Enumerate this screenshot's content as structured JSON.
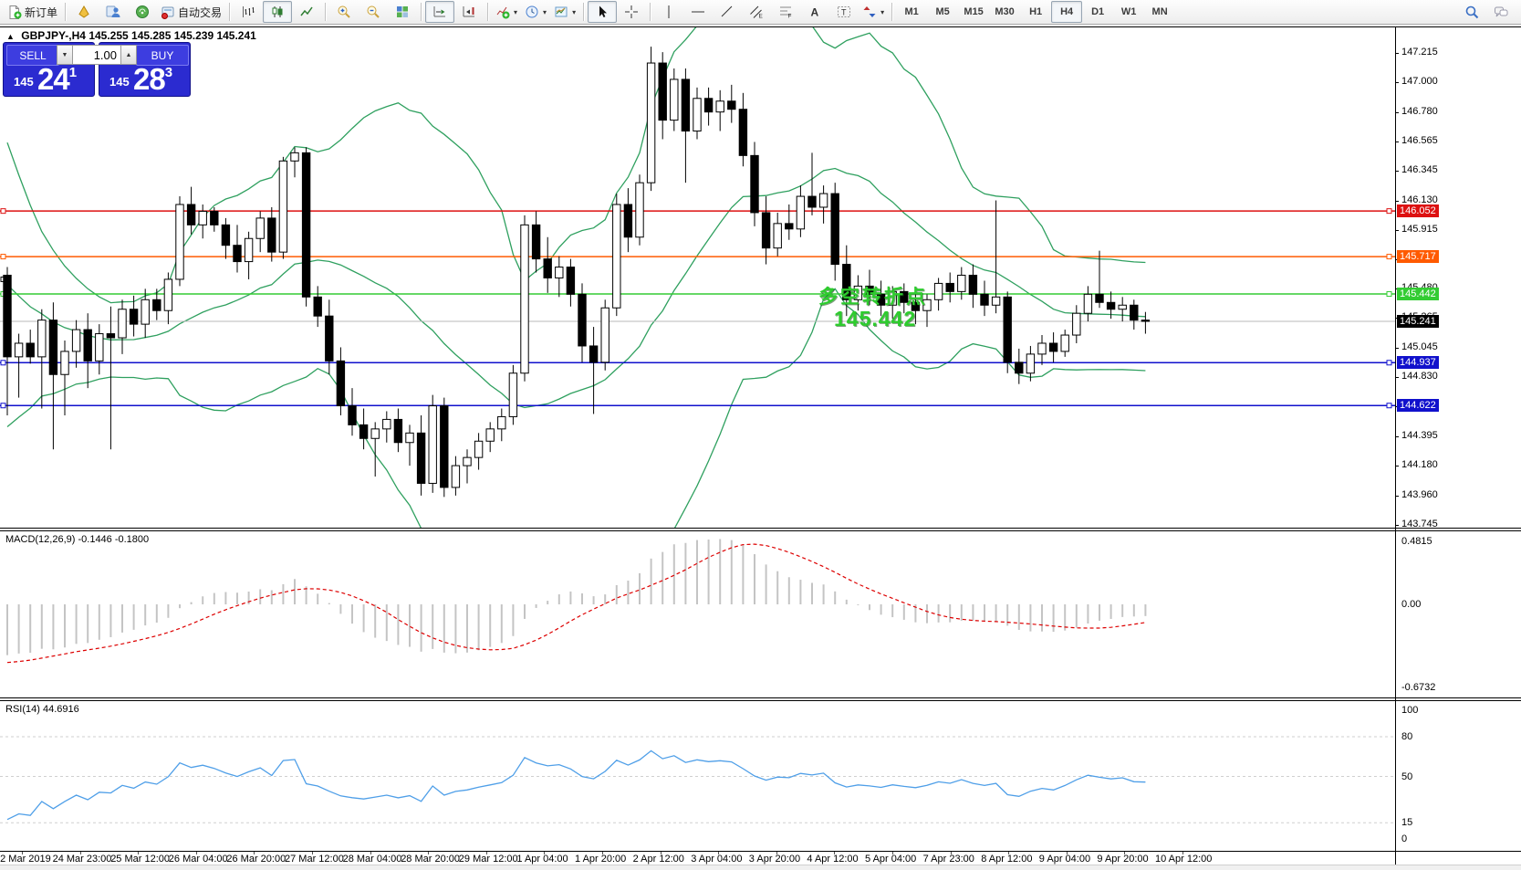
{
  "toolbar": {
    "items": [
      {
        "name": "new-order-button",
        "icon": "doc-plus",
        "label": "新订单"
      },
      {
        "sep": true
      },
      {
        "name": "metaeditor-button",
        "icon": "yellow-wedge"
      },
      {
        "name": "market-watch-button",
        "icon": "person"
      },
      {
        "name": "navigator-button",
        "icon": "orb"
      },
      {
        "name": "autotrading-button",
        "icon": "autotrade",
        "label": "自动交易"
      },
      {
        "sep": true
      },
      {
        "name": "bar-chart-button",
        "icon": "bars"
      },
      {
        "name": "candlestick-chart-button",
        "icon": "candles",
        "pressed": true
      },
      {
        "name": "line-chart-button",
        "icon": "linechart"
      },
      {
        "sep": true
      },
      {
        "name": "zoom-in-button",
        "icon": "zoom-in"
      },
      {
        "name": "zoom-out-button",
        "icon": "zoom-out"
      },
      {
        "name": "tile-windows-button",
        "icon": "tiles"
      },
      {
        "sep": true
      },
      {
        "name": "auto-scroll-button",
        "icon": "autoscroll",
        "pressed": true
      },
      {
        "name": "chart-shift-button",
        "icon": "shift"
      },
      {
        "sep": true
      },
      {
        "name": "indicators-button",
        "icon": "indicators",
        "dd": true
      },
      {
        "name": "periods-button",
        "icon": "clock",
        "dd": true
      },
      {
        "name": "templates-button",
        "icon": "template",
        "dd": true
      },
      {
        "sep": true
      },
      {
        "name": "cursor-button",
        "icon": "cursor",
        "pressed": true
      },
      {
        "name": "crosshair-button",
        "icon": "crosshair"
      },
      {
        "sep": true
      },
      {
        "name": "vertical-line-button",
        "icon": "vline"
      },
      {
        "name": "horizontal-line-button",
        "icon": "hline"
      },
      {
        "name": "trendline-button",
        "icon": "trendline"
      },
      {
        "name": "equidistant-channel-button",
        "icon": "channel"
      },
      {
        "name": "fibonacci-button",
        "icon": "fibo"
      },
      {
        "name": "text-button",
        "icon": "text-a"
      },
      {
        "name": "text-label-button",
        "icon": "text-label"
      },
      {
        "name": "arrows-button",
        "icon": "arrows",
        "dd": true
      },
      {
        "sep": true
      }
    ],
    "timeframes": [
      {
        "label": "M1"
      },
      {
        "label": "M5"
      },
      {
        "label": "M15"
      },
      {
        "label": "M30"
      },
      {
        "label": "H1"
      },
      {
        "label": "H4",
        "pressed": true
      },
      {
        "label": "D1"
      },
      {
        "label": "W1"
      },
      {
        "label": "MN"
      }
    ],
    "right_icons": [
      {
        "name": "search-button",
        "icon": "search"
      },
      {
        "name": "chat-button",
        "icon": "chat"
      }
    ]
  },
  "header": {
    "collapse_glyph": "▲",
    "symbol": "GBPJPY-,H4",
    "ohlc": "145.255 145.285 145.239 145.241"
  },
  "trade_panel": {
    "sell_label": "SELL",
    "buy_label": "BUY",
    "volume": "1.00",
    "spin_down": "▼",
    "spin_up": "▲",
    "sell_small": "145",
    "sell_big": "24",
    "sell_sup": "1",
    "buy_small": "145",
    "buy_big": "28",
    "buy_sup": "3"
  },
  "annotation": {
    "line1": "多空转折点",
    "line2": "145.442",
    "color": "#2ecc2e"
  },
  "macd_panel": {
    "name": "MACD(12,26,9)",
    "values": "-0.1446 -0.1800"
  },
  "rsi_panel": {
    "name": "RSI(14)",
    "value": "44.6916"
  },
  "chart_data": {
    "type": "candlestick",
    "symbol": "GBPJPY-",
    "timeframe": "H4",
    "price_axis_ticks": [
      147.215,
      147.0,
      146.78,
      146.565,
      146.345,
      146.13,
      145.915,
      145.7,
      145.48,
      145.265,
      145.045,
      144.83,
      144.615,
      144.395,
      144.18,
      143.96,
      143.745
    ],
    "levels": [
      {
        "price": 146.052,
        "label": "146.052",
        "color": "#dd1111"
      },
      {
        "price": 145.717,
        "label": "145.717",
        "color": "#ff5a00"
      },
      {
        "price": 145.442,
        "label": "145.442",
        "color": "#33cc33"
      },
      {
        "price": 144.937,
        "label": "144.937",
        "color": "#1111cc"
      },
      {
        "price": 144.622,
        "label": "144.622",
        "color": "#1111cc"
      }
    ],
    "current_price": {
      "price": 145.241,
      "label": "145.241",
      "line_color": "#b9b9b9",
      "badge_color": "#000000"
    },
    "extra_anchor_price": 145.55,
    "prehistory_closes": [
      146.9,
      146.75,
      146.55,
      146.3,
      146.05,
      145.85,
      145.7,
      145.6,
      145.5,
      145.4,
      145.3,
      145.2,
      145.1,
      145.0,
      144.95,
      145.0,
      145.1,
      145.2,
      145.3,
      145.38
    ],
    "candles": [
      [
        145.58,
        145.64,
        144.55,
        144.98
      ],
      [
        144.98,
        145.15,
        144.68,
        145.08
      ],
      [
        145.08,
        145.18,
        144.93,
        144.98
      ],
      [
        144.98,
        145.33,
        144.6,
        145.25
      ],
      [
        145.25,
        145.38,
        144.3,
        144.85
      ],
      [
        144.85,
        145.1,
        144.55,
        145.02
      ],
      [
        145.02,
        145.25,
        144.9,
        145.18
      ],
      [
        145.18,
        145.3,
        144.75,
        144.95
      ],
      [
        144.95,
        145.22,
        144.85,
        145.15
      ],
      [
        145.15,
        145.35,
        144.3,
        145.12
      ],
      [
        145.12,
        145.4,
        145.0,
        145.33
      ],
      [
        145.33,
        145.43,
        145.13,
        145.22
      ],
      [
        145.22,
        145.48,
        145.12,
        145.4
      ],
      [
        145.4,
        145.48,
        145.25,
        145.32
      ],
      [
        145.32,
        145.6,
        145.22,
        145.55
      ],
      [
        145.55,
        146.16,
        145.5,
        146.1
      ],
      [
        146.1,
        146.23,
        145.88,
        145.95
      ],
      [
        145.95,
        146.1,
        145.85,
        146.05
      ],
      [
        146.05,
        146.08,
        145.9,
        145.95
      ],
      [
        145.95,
        146.0,
        145.7,
        145.8
      ],
      [
        145.8,
        145.95,
        145.6,
        145.68
      ],
      [
        145.68,
        145.9,
        145.55,
        145.85
      ],
      [
        145.85,
        146.05,
        145.75,
        146.0
      ],
      [
        146.0,
        146.08,
        145.68,
        145.75
      ],
      [
        145.75,
        146.45,
        145.7,
        146.42
      ],
      [
        146.42,
        146.52,
        146.3,
        146.48
      ],
      [
        146.48,
        146.52,
        145.35,
        145.42
      ],
      [
        145.42,
        145.5,
        145.2,
        145.28
      ],
      [
        145.28,
        145.4,
        144.85,
        144.95
      ],
      [
        144.95,
        145.05,
        144.55,
        144.62
      ],
      [
        144.62,
        144.75,
        144.4,
        144.48
      ],
      [
        144.48,
        144.6,
        144.3,
        144.38
      ],
      [
        144.38,
        144.5,
        144.1,
        144.45
      ],
      [
        144.45,
        144.58,
        144.35,
        144.52
      ],
      [
        144.52,
        144.6,
        144.28,
        144.35
      ],
      [
        144.35,
        144.48,
        144.18,
        144.42
      ],
      [
        144.42,
        144.55,
        143.96,
        144.05
      ],
      [
        144.05,
        144.7,
        143.98,
        144.62
      ],
      [
        144.62,
        144.68,
        143.95,
        144.02
      ],
      [
        144.02,
        144.25,
        143.96,
        144.18
      ],
      [
        144.18,
        144.3,
        144.05,
        144.24
      ],
      [
        144.24,
        144.42,
        144.15,
        144.36
      ],
      [
        144.36,
        144.5,
        144.28,
        144.45
      ],
      [
        144.45,
        144.6,
        144.36,
        144.54
      ],
      [
        144.54,
        144.92,
        144.48,
        144.86
      ],
      [
        144.86,
        146.02,
        144.8,
        145.95
      ],
      [
        145.95,
        146.05,
        145.6,
        145.7
      ],
      [
        145.7,
        145.86,
        145.45,
        145.56
      ],
      [
        145.56,
        145.72,
        145.42,
        145.64
      ],
      [
        145.64,
        145.7,
        145.35,
        145.44
      ],
      [
        145.44,
        145.52,
        144.94,
        145.06
      ],
      [
        145.06,
        145.2,
        144.56,
        144.94
      ],
      [
        144.94,
        145.4,
        144.88,
        145.34
      ],
      [
        145.34,
        146.18,
        145.28,
        146.1
      ],
      [
        146.1,
        146.22,
        145.75,
        145.86
      ],
      [
        145.86,
        146.32,
        145.8,
        146.26
      ],
      [
        146.26,
        147.26,
        146.2,
        147.14
      ],
      [
        147.14,
        147.22,
        146.58,
        146.72
      ],
      [
        146.72,
        147.1,
        146.64,
        147.02
      ],
      [
        147.02,
        147.1,
        146.26,
        146.64
      ],
      [
        146.64,
        146.96,
        146.58,
        146.88
      ],
      [
        146.88,
        146.96,
        146.68,
        146.78
      ],
      [
        146.78,
        146.94,
        146.64,
        146.86
      ],
      [
        146.86,
        146.98,
        146.7,
        146.8
      ],
      [
        146.8,
        146.92,
        146.38,
        146.46
      ],
      [
        146.46,
        146.56,
        145.94,
        146.04
      ],
      [
        146.04,
        146.16,
        145.66,
        145.78
      ],
      [
        145.78,
        146.04,
        145.72,
        145.96
      ],
      [
        145.96,
        146.1,
        145.84,
        145.92
      ],
      [
        145.92,
        146.24,
        145.86,
        146.16
      ],
      [
        146.16,
        146.48,
        146.02,
        146.08
      ],
      [
        146.08,
        146.24,
        145.96,
        146.18
      ],
      [
        146.18,
        146.26,
        145.54,
        145.66
      ],
      [
        145.66,
        145.8,
        145.28,
        145.4
      ],
      [
        145.4,
        145.58,
        145.32,
        145.5
      ],
      [
        145.5,
        145.62,
        145.36,
        145.44
      ],
      [
        145.44,
        145.54,
        145.28,
        145.36
      ],
      [
        145.36,
        145.5,
        145.26,
        145.46
      ],
      [
        145.46,
        145.52,
        145.3,
        145.38
      ],
      [
        145.38,
        145.48,
        145.22,
        145.32
      ],
      [
        145.32,
        145.44,
        145.2,
        145.4
      ],
      [
        145.4,
        145.56,
        145.32,
        145.52
      ],
      [
        145.52,
        145.6,
        145.38,
        145.46
      ],
      [
        145.46,
        145.64,
        145.4,
        145.58
      ],
      [
        145.58,
        145.66,
        145.34,
        145.44
      ],
      [
        145.44,
        145.54,
        145.28,
        145.36
      ],
      [
        145.36,
        146.13,
        145.3,
        145.42
      ],
      [
        145.42,
        145.46,
        144.86,
        144.94
      ],
      [
        144.94,
        145.04,
        144.78,
        144.86
      ],
      [
        144.86,
        145.06,
        144.8,
        145.0
      ],
      [
        145.0,
        145.14,
        144.92,
        145.08
      ],
      [
        145.08,
        145.16,
        144.94,
        145.02
      ],
      [
        145.02,
        145.18,
        144.98,
        145.14
      ],
      [
        145.14,
        145.36,
        145.08,
        145.3
      ],
      [
        145.3,
        145.5,
        145.24,
        145.44
      ],
      [
        145.44,
        145.76,
        145.34,
        145.38
      ],
      [
        145.38,
        145.46,
        145.26,
        145.33
      ],
      [
        145.33,
        145.42,
        145.24,
        145.36
      ],
      [
        145.36,
        145.4,
        145.18,
        145.25
      ],
      [
        145.25,
        145.31,
        145.15,
        145.241
      ]
    ],
    "indicators": {
      "bollinger": {
        "period": 20,
        "deviation": 2,
        "color": "#2fa05f"
      },
      "macd": {
        "fast": 12,
        "slow": 26,
        "signal": 9,
        "axis_labels": [
          {
            "v": 0.4815,
            "label": "0.4815"
          },
          {
            "v": 0,
            "label": "0.00"
          },
          {
            "v": -0.6732,
            "label": "-0.6732"
          }
        ],
        "histogram_color": "#c4c4c4",
        "signal_color": "#dd0000"
      },
      "rsi": {
        "period": 14,
        "color": "#4f9fe8",
        "levels": [
          80,
          50,
          15
        ],
        "axis_labels": [
          {
            "v": 100,
            "label": "100"
          },
          {
            "v": 80,
            "label": "80"
          },
          {
            "v": 50,
            "label": "50"
          },
          {
            "v": 15,
            "label": "15"
          },
          {
            "v": 0,
            "label": "0"
          }
        ]
      }
    },
    "time_labels": [
      "22 Mar 2019",
      "24 Mar 23:00",
      "25 Mar 12:00",
      "26 Mar 04:00",
      "26 Mar 20:00",
      "27 Mar 12:00",
      "28 Mar 04:00",
      "28 Mar 20:00",
      "29 Mar 12:00",
      "1 Apr 04:00",
      "1 Apr 20:00",
      "2 Apr 12:00",
      "3 Apr 04:00",
      "3 Apr 20:00",
      "4 Apr 12:00",
      "5 Apr 04:00",
      "7 Apr 23:00",
      "8 Apr 12:00",
      "9 Apr 04:00",
      "9 Apr 20:00",
      "10 Apr 12:00"
    ]
  }
}
